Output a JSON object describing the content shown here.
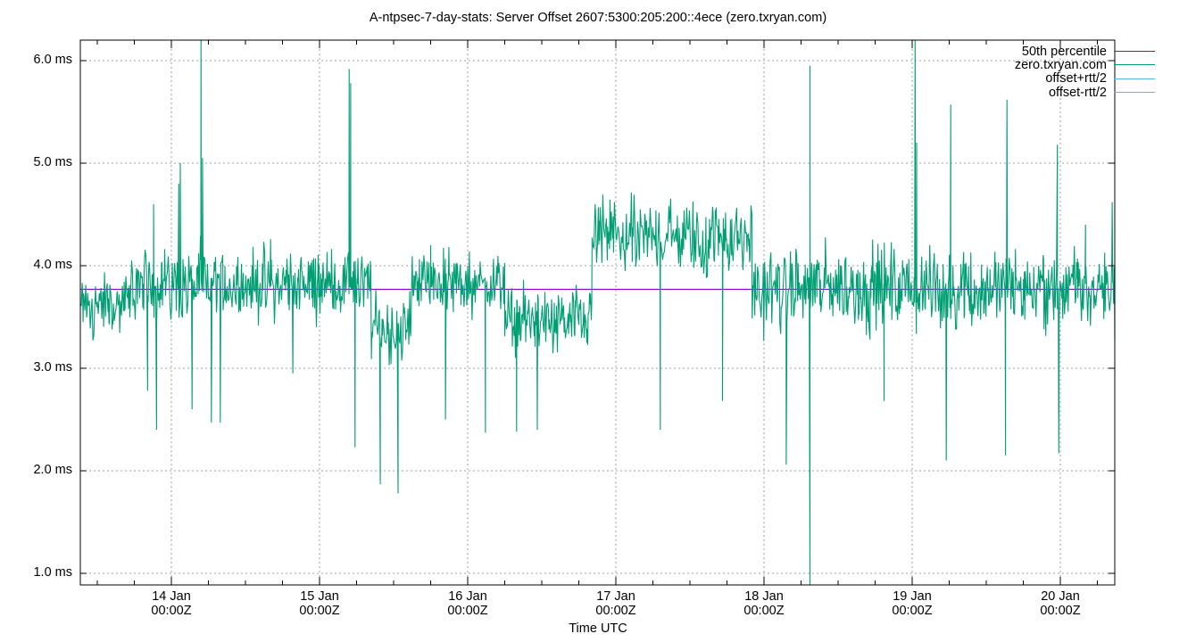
{
  "chart_data": {
    "type": "line",
    "title": "A-ntpsec-7-day-stats: Server Offset 2607:5300:205:200::4ece (zero.txryan.com)",
    "xlabel": "Time UTC",
    "ylabel": "",
    "ylim": [
      0.89,
      6.2
    ],
    "y_ticks": [
      {
        "value": 1.0,
        "label": "1.0 ms"
      },
      {
        "value": 2.0,
        "label": "2.0 ms"
      },
      {
        "value": 3.0,
        "label": "3.0 ms"
      },
      {
        "value": 4.0,
        "label": "4.0 ms"
      },
      {
        "value": 5.0,
        "label": "5.0 ms"
      },
      {
        "value": 6.0,
        "label": "6.0 ms"
      }
    ],
    "x_ticks": [
      {
        "day": 1,
        "line1": "14 Jan",
        "line2": "00:00Z"
      },
      {
        "day": 2,
        "line1": "15 Jan",
        "line2": "00:00Z"
      },
      {
        "day": 3,
        "line1": "16 Jan",
        "line2": "00:00Z"
      },
      {
        "day": 4,
        "line1": "17 Jan",
        "line2": "00:00Z"
      },
      {
        "day": 5,
        "line1": "18 Jan",
        "line2": "00:00Z"
      },
      {
        "day": 6,
        "line1": "19 Jan",
        "line2": "00:00Z"
      },
      {
        "day": 7,
        "line1": "20 Jan",
        "line2": "00:00Z"
      }
    ],
    "x_unit": "days since 13 Jan 00:00Z",
    "xlim": [
      0.386,
      7.37
    ],
    "grid": true,
    "legend_position": "top-right",
    "series": [
      {
        "name": "50th percentile",
        "color": "#9400d3",
        "constant": 3.77
      },
      {
        "name": "zero.txryan.com",
        "color": "#009e73",
        "segments": [
          {
            "from": 0.386,
            "to": 0.72,
            "mean": 3.6,
            "noise": 0.15
          },
          {
            "from": 0.72,
            "to": 2.35,
            "mean": 3.82,
            "noise": 0.17
          },
          {
            "from": 2.35,
            "to": 2.62,
            "mean": 3.38,
            "noise": 0.16
          },
          {
            "from": 2.62,
            "to": 3.25,
            "mean": 3.83,
            "noise": 0.15
          },
          {
            "from": 3.25,
            "to": 3.84,
            "mean": 3.45,
            "noise": 0.16
          },
          {
            "from": 3.84,
            "to": 4.92,
            "mean": 4.28,
            "noise": 0.18
          },
          {
            "from": 4.92,
            "to": 7.37,
            "mean": 3.77,
            "noise": 0.2
          }
        ],
        "spikes": [
          [
            0.84,
            2.78
          ],
          [
            0.88,
            4.6
          ],
          [
            0.9,
            2.4
          ],
          [
            1.05,
            4.8
          ],
          [
            1.06,
            5.0
          ],
          [
            1.14,
            2.6
          ],
          [
            1.2,
            6.2
          ],
          [
            1.21,
            5.05
          ],
          [
            1.27,
            2.47
          ],
          [
            1.33,
            2.47
          ],
          [
            1.67,
            4.26
          ],
          [
            1.82,
            2.95
          ],
          [
            2.2,
            5.92
          ],
          [
            2.21,
            5.78
          ],
          [
            2.24,
            2.23
          ],
          [
            2.41,
            1.87
          ],
          [
            2.53,
            1.78
          ],
          [
            2.75,
            4.2
          ],
          [
            2.85,
            2.5
          ],
          [
            3.12,
            2.37
          ],
          [
            3.33,
            2.38
          ],
          [
            3.47,
            2.4
          ],
          [
            3.86,
            4.6
          ],
          [
            4.3,
            2.4
          ],
          [
            4.72,
            2.68
          ],
          [
            5.15,
            2.06
          ],
          [
            5.31,
            0.89
          ],
          [
            5.31,
            5.95
          ],
          [
            5.31,
            4.9
          ],
          [
            5.81,
            2.68
          ],
          [
            6.02,
            6.2
          ],
          [
            6.03,
            5.2
          ],
          [
            6.23,
            2.1
          ],
          [
            6.26,
            5.57
          ],
          [
            6.63,
            2.15
          ],
          [
            6.64,
            5.62
          ],
          [
            6.98,
            5.18
          ],
          [
            6.99,
            2.17
          ],
          [
            7.17,
            4.4
          ],
          [
            7.35,
            4.62
          ],
          [
            7.37,
            3.28
          ]
        ]
      },
      {
        "name": "offset+rtt/2",
        "color": "#56b4e9"
      },
      {
        "name": "offset-rtt/2",
        "color": "#e69f00"
      }
    ]
  },
  "legend": [
    {
      "label": "50th percentile",
      "color": "#9400d3"
    },
    {
      "label": "zero.txryan.com",
      "color": "#009e73"
    },
    {
      "label": "offset+rtt/2",
      "color": "#56b4e9"
    },
    {
      "label": "offset-rtt/2",
      "color": "#e69f00"
    }
  ]
}
